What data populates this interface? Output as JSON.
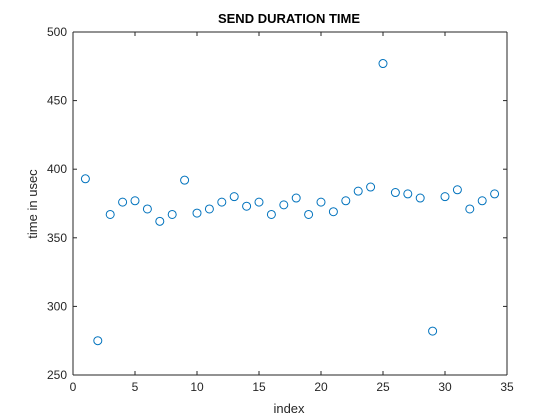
{
  "chart_data": {
    "type": "scatter",
    "title": "SEND DURATION TIME",
    "xlabel": "index",
    "ylabel": "time in usec",
    "xlim": [
      0,
      35
    ],
    "ylim": [
      250,
      500
    ],
    "xticks": [
      0,
      5,
      10,
      15,
      20,
      25,
      30,
      35
    ],
    "yticks": [
      250,
      300,
      350,
      400,
      450,
      500
    ],
    "grid": false,
    "marker": "circle-open",
    "series_color": "#0072BD",
    "x": [
      1,
      2,
      3,
      4,
      5,
      6,
      7,
      8,
      9,
      10,
      11,
      12,
      13,
      14,
      15,
      16,
      17,
      18,
      19,
      20,
      21,
      22,
      23,
      24,
      25,
      26,
      27,
      28,
      29,
      30,
      31,
      32,
      33,
      34
    ],
    "y": [
      393,
      275,
      367,
      376,
      377,
      371,
      362,
      367,
      392,
      368,
      371,
      376,
      380,
      373,
      376,
      367,
      374,
      379,
      367,
      376,
      369,
      377,
      384,
      387,
      477,
      383,
      382,
      379,
      282,
      380,
      385,
      371,
      377,
      382
    ]
  }
}
